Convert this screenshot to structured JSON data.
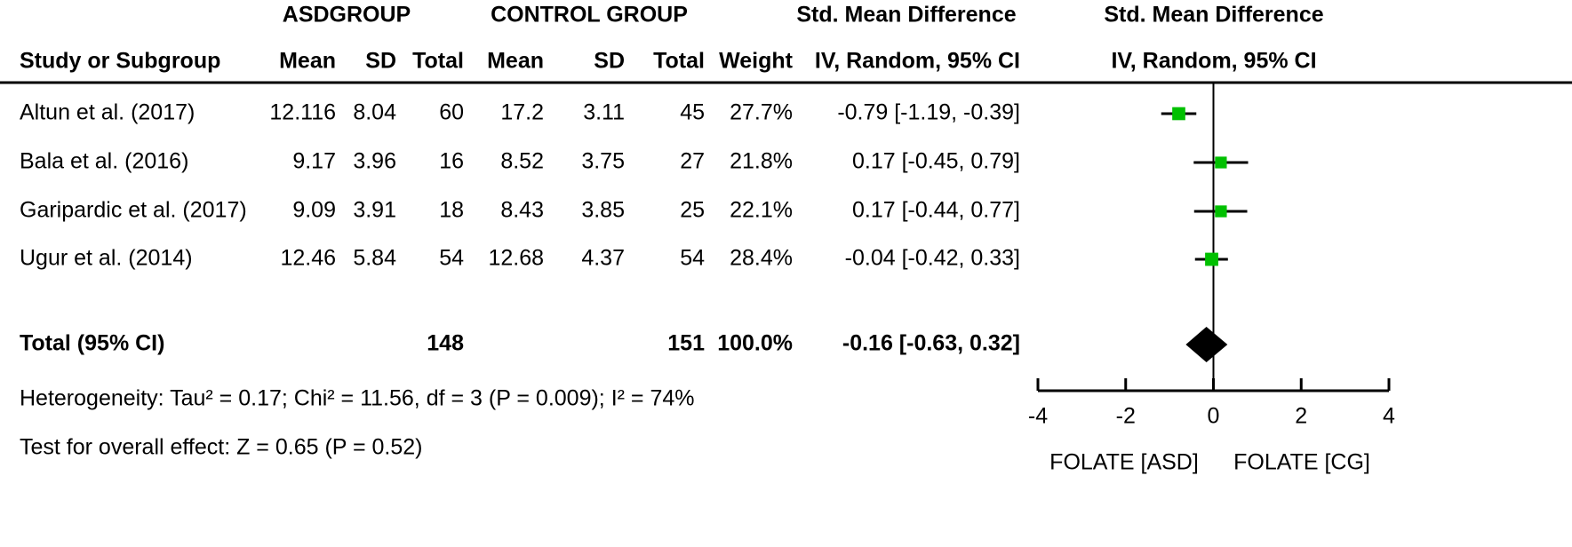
{
  "chart_data": {
    "type": "forest",
    "group_headers": {
      "asd": "ASDGROUP",
      "control": "CONTROL GROUP",
      "smd_table": "Std. Mean Difference",
      "smd_plot": "Std. Mean Difference"
    },
    "column_headers": {
      "study": "Study or Subgroup",
      "asd_mean": "Mean",
      "asd_sd": "SD",
      "asd_total": "Total",
      "cg_mean": "Mean",
      "cg_sd": "SD",
      "cg_total": "Total",
      "weight": "Weight",
      "ci": "IV, Random, 95% CI",
      "plot": "IV, Random, 95% CI"
    },
    "studies": [
      {
        "name": "Altun et al. (2017)",
        "asd_mean": "12.116",
        "asd_sd": "8.04",
        "asd_total": "60",
        "cg_mean": "17.2",
        "cg_sd": "3.11",
        "cg_total": "45",
        "weight": 27.7,
        "weight_label": "27.7%",
        "ci_label": "-0.79 [-1.19, -0.39]",
        "smd": -0.79,
        "lower": -1.19,
        "upper": -0.39
      },
      {
        "name": "Bala et al. (2016)",
        "asd_mean": "9.17",
        "asd_sd": "3.96",
        "asd_total": "16",
        "cg_mean": "8.52",
        "cg_sd": "3.75",
        "cg_total": "27",
        "weight": 21.8,
        "weight_label": "21.8%",
        "ci_label": "0.17 [-0.45, 0.79]",
        "smd": 0.17,
        "lower": -0.45,
        "upper": 0.79
      },
      {
        "name": "Garipardic et al. (2017)",
        "asd_mean": "9.09",
        "asd_sd": "3.91",
        "asd_total": "18",
        "cg_mean": "8.43",
        "cg_sd": "3.85",
        "cg_total": "25",
        "weight": 22.1,
        "weight_label": "22.1%",
        "ci_label": "0.17 [-0.44, 0.77]",
        "smd": 0.17,
        "lower": -0.44,
        "upper": 0.77
      },
      {
        "name": "Ugur et al. (2014)",
        "asd_mean": "12.46",
        "asd_sd": "5.84",
        "asd_total": "54",
        "cg_mean": "12.68",
        "cg_sd": "4.37",
        "cg_total": "54",
        "weight": 28.4,
        "weight_label": "28.4%",
        "ci_label": "-0.04 [-0.42, 0.33]",
        "smd": -0.04,
        "lower": -0.42,
        "upper": 0.33
      }
    ],
    "total": {
      "name": "Total (95% CI)",
      "asd_total": "148",
      "cg_total": "151",
      "weight_label": "100.0%",
      "ci_label": "-0.16 [-0.63, 0.32]",
      "smd": -0.16,
      "lower": -0.63,
      "upper": 0.32
    },
    "heterogeneity": "Heterogeneity: Tau² = 0.17; Chi² = 11.56, df = 3 (P = 0.009); I² = 74%",
    "overall_effect": "Test for overall effect: Z = 0.65 (P = 0.52)",
    "xlim": [
      -4,
      4
    ],
    "xticks": [
      -4,
      -2,
      0,
      2,
      4
    ],
    "x_labels": {
      "left": "FOLATE [ASD]",
      "right": "FOLATE [CG]"
    },
    "color": "#00c000"
  }
}
